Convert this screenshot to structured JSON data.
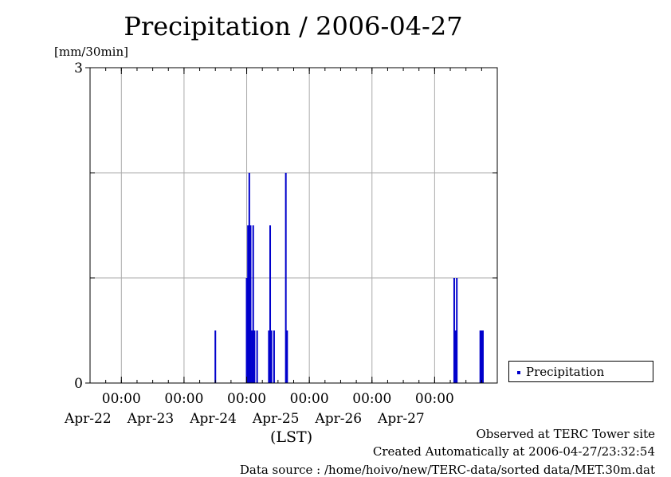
{
  "colors": {
    "series": "#0000cc",
    "grid": "#aaaaaa",
    "axis": "#000000"
  },
  "chart_data": {
    "type": "bar",
    "title": "Precipitation / 2006-04-27",
    "ylabel": "[mm/30min]",
    "xlabel": "(LST)",
    "ylim": [
      0,
      3
    ],
    "y_ticks": [
      "0",
      "3"
    ],
    "xlim": [
      "2006-04-21T12:00",
      "2006-04-28T00:00"
    ],
    "x_ticks": [
      {
        "time": "2006-04-22T00:00",
        "time_label": "00:00",
        "date_label": "Apr-22"
      },
      {
        "time": "2006-04-23T00:00",
        "time_label": "00:00",
        "date_label": "Apr-23"
      },
      {
        "time": "2006-04-24T00:00",
        "time_label": "00:00",
        "date_label": "Apr-24"
      },
      {
        "time": "2006-04-25T00:00",
        "time_label": "00:00",
        "date_label": "Apr-25"
      },
      {
        "time": "2006-04-26T00:00",
        "time_label": "00:00",
        "date_label": "Apr-26"
      },
      {
        "time": "2006-04-27T00:00",
        "time_label": "00:00",
        "date_label": "Apr-27"
      }
    ],
    "grid": true,
    "legend_position": "right",
    "series": [
      {
        "name": "Precipitation",
        "points": [
          {
            "x": "2006-04-23T12:00",
            "y": 0.5
          },
          {
            "x": "2006-04-24T00:00",
            "y": 1.0
          },
          {
            "x": "2006-04-24T00:30",
            "y": 1.5
          },
          {
            "x": "2006-04-24T01:00",
            "y": 2.0
          },
          {
            "x": "2006-04-24T01:30",
            "y": 1.5
          },
          {
            "x": "2006-04-24T02:00",
            "y": 0.5
          },
          {
            "x": "2006-04-24T02:30",
            "y": 1.5
          },
          {
            "x": "2006-04-24T03:00",
            "y": 0.5
          },
          {
            "x": "2006-04-24T04:00",
            "y": 0.5
          },
          {
            "x": "2006-04-24T08:30",
            "y": 0.5
          },
          {
            "x": "2006-04-24T09:00",
            "y": 1.5
          },
          {
            "x": "2006-04-24T09:30",
            "y": 0.5
          },
          {
            "x": "2006-04-24T10:30",
            "y": 0.5
          },
          {
            "x": "2006-04-24T15:00",
            "y": 2.0
          },
          {
            "x": "2006-04-24T15:30",
            "y": 0.5
          },
          {
            "x": "2006-04-27T07:30",
            "y": 1.0
          },
          {
            "x": "2006-04-27T08:00",
            "y": 0.5
          },
          {
            "x": "2006-04-27T08:30",
            "y": 1.0
          },
          {
            "x": "2006-04-27T17:30",
            "y": 0.5
          },
          {
            "x": "2006-04-27T18:00",
            "y": 0.5
          },
          {
            "x": "2006-04-27T18:30",
            "y": 0.5
          }
        ]
      }
    ]
  },
  "footer": {
    "line1": "Observed at TERC Tower site",
    "line2": "Created Automatically at 2006-04-27/23:32:54",
    "line3": "Data source : /home/hoivo/new/TERC-data/sorted  data/MET.30m.dat"
  }
}
